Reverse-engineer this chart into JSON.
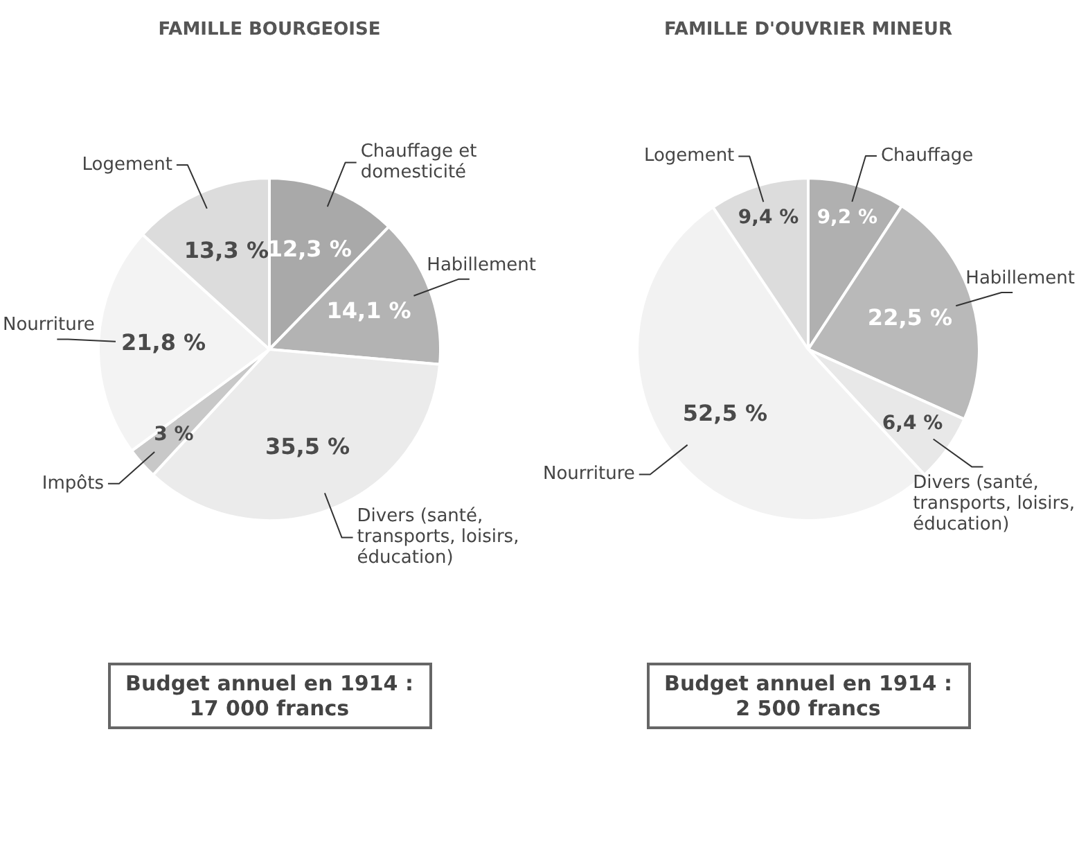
{
  "chart_data": [
    {
      "type": "pie",
      "title": "FAMILLE BOURGEOISE",
      "categories": [
        "Chauffage et domesticité",
        "Habillement",
        "Divers (santé, transports, loisirs, éducation)",
        "Impôts",
        "Nourriture",
        "Logement"
      ],
      "values": [
        12.3,
        14.1,
        35.5,
        3,
        21.8,
        13.3
      ],
      "value_labels": [
        "12,3 %",
        "14,1 %",
        "35,5 %",
        "3 %",
        "21,8 %",
        "13,3 %"
      ],
      "colors": [
        "#a9a9a9",
        "#b3b3b3",
        "#ebebeb",
        "#c8c8c8",
        "#f3f3f3",
        "#dcdcdc"
      ],
      "annotations": [
        "Budget annuel en 1914 : 17 000 francs"
      ]
    },
    {
      "type": "pie",
      "title": "FAMILLE D'OUVRIER MINEUR",
      "categories": [
        "Chauffage",
        "Habillement",
        "Divers (santé, transports, loisirs, éducation)",
        "Nourriture",
        "Logement"
      ],
      "values": [
        9.2,
        22.5,
        6.4,
        52.5,
        9.4
      ],
      "value_labels": [
        "9,2 %",
        "22,5 %",
        "6,4 %",
        "52,5 %",
        "9,4 %"
      ],
      "colors": [
        "#b0b0b0",
        "#b9b9b9",
        "#e8e8e8",
        "#f2f2f2",
        "#dcdcdc"
      ],
      "annotations": [
        "Budget annuel en 1914 : 2 500 francs"
      ]
    }
  ]
}
